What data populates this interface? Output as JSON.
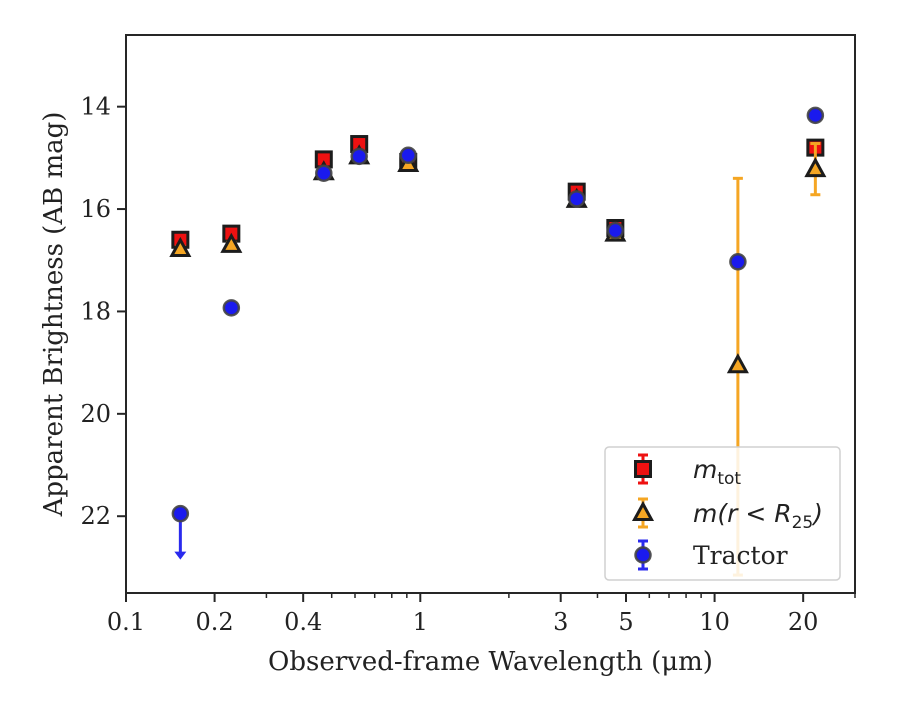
{
  "chart_data": {
    "type": "scatter",
    "xlabel": "Observed-frame Wavelength (μm)",
    "ylabel": "Apparent Brightness (AB mag)",
    "xscale": "log",
    "xlim": [
      0.1,
      30
    ],
    "ylim": [
      23.5,
      12.6
    ],
    "y_inverted": true,
    "x_ticks": [
      {
        "value": 0.1,
        "label": "0.1"
      },
      {
        "value": 0.2,
        "label": "0.2"
      },
      {
        "value": 0.4,
        "label": "0.4"
      },
      {
        "value": 1,
        "label": "1"
      },
      {
        "value": 3,
        "label": "3"
      },
      {
        "value": 5,
        "label": "5"
      },
      {
        "value": 10,
        "label": "10"
      },
      {
        "value": 20,
        "label": "20"
      }
    ],
    "y_ticks": [
      {
        "value": 14,
        "label": "14"
      },
      {
        "value": 16,
        "label": "16"
      },
      {
        "value": 18,
        "label": "18"
      },
      {
        "value": 20,
        "label": "20"
      },
      {
        "value": 22,
        "label": "22"
      }
    ],
    "grid": false,
    "legend": {
      "placement": "lower-right",
      "entries": [
        {
          "series": "m_tot",
          "label_main": "m",
          "label_sub": "tot",
          "label_rest": ""
        },
        {
          "series": "m_r25",
          "label_main": "m(r < R",
          "label_sub": "25",
          "label_rest": ")"
        },
        {
          "series": "tractor",
          "label_main": "Tractor",
          "label_sub": "",
          "label_rest": ""
        }
      ]
    },
    "series": [
      {
        "id": "m_tot",
        "marker": "square",
        "color": "#ee1111",
        "points": [
          {
            "x": 0.153,
            "y": 16.6,
            "err": 0.08
          },
          {
            "x": 0.228,
            "y": 16.48,
            "err": 0.08
          },
          {
            "x": 0.47,
            "y": 15.03,
            "err": 0.06
          },
          {
            "x": 0.62,
            "y": 14.73,
            "err": 0.06
          },
          {
            "x": 0.91,
            "y": 15.08,
            "err": 0.06
          },
          {
            "x": 3.4,
            "y": 15.66,
            "err": 0.06
          },
          {
            "x": 4.6,
            "y": 16.37,
            "err": 0.06
          },
          {
            "x": 22,
            "y": 14.8,
            "err": 0.06
          }
        ]
      },
      {
        "id": "m_r25",
        "marker": "triangle",
        "color": "#f5a623",
        "points": [
          {
            "x": 0.153,
            "y": 16.78,
            "err": 0.05
          },
          {
            "x": 0.228,
            "y": 16.7,
            "err": 0.05
          },
          {
            "x": 0.47,
            "y": 15.28,
            "err": 0.05
          },
          {
            "x": 0.62,
            "y": 14.97,
            "err": 0.05
          },
          {
            "x": 0.91,
            "y": 15.12,
            "err": 0.05
          },
          {
            "x": 3.4,
            "y": 15.82,
            "err": 0.05
          },
          {
            "x": 4.6,
            "y": 16.48,
            "err": 0.05
          },
          {
            "x": 12,
            "y": 19.05,
            "err_low": 3.65,
            "err_high": 4.1
          },
          {
            "x": 22,
            "y": 15.22,
            "err": 0.5
          }
        ]
      },
      {
        "id": "tractor",
        "marker": "circle",
        "color": "#1a1aee",
        "points": [
          {
            "x": 0.153,
            "y": 21.95,
            "upper_limit": true
          },
          {
            "x": 0.228,
            "y": 17.93,
            "err": 0.05
          },
          {
            "x": 0.47,
            "y": 15.3,
            "err": 0.05
          },
          {
            "x": 0.62,
            "y": 14.97,
            "err": 0.05
          },
          {
            "x": 0.91,
            "y": 14.95,
            "err": 0.05
          },
          {
            "x": 3.4,
            "y": 15.8,
            "err": 0.05
          },
          {
            "x": 4.6,
            "y": 16.42,
            "err": 0.05
          },
          {
            "x": 12,
            "y": 17.03,
            "err": 0.05
          },
          {
            "x": 22,
            "y": 14.17,
            "err": 0.05
          }
        ]
      }
    ]
  }
}
